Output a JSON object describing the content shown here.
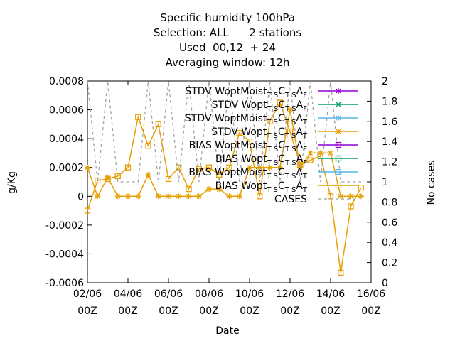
{
  "chart_data": {
    "type": "line",
    "title_lines": [
      "Specific humidity 100hPa",
      "Selection: ALL      2 stations",
      "Used  00,12  + 24",
      "Averaging window: 12h"
    ],
    "xlabel": "Date",
    "ylabel": "g/Kg",
    "y2label": "No cases",
    "x_range_days": [
      2,
      16
    ],
    "x_ticks": [
      {
        "day": 2,
        "line1": "02/06",
        "line2": "00Z"
      },
      {
        "day": 4,
        "line1": "04/06",
        "line2": "00Z"
      },
      {
        "day": 6,
        "line1": "06/06",
        "line2": "00Z"
      },
      {
        "day": 8,
        "line1": "08/06",
        "line2": "00Z"
      },
      {
        "day": 10,
        "line1": "10/06",
        "line2": "00Z"
      },
      {
        "day": 12,
        "line1": "12/06",
        "line2": "00Z"
      },
      {
        "day": 14,
        "line1": "14/06",
        "line2": "00Z"
      },
      {
        "day": 16,
        "line1": "16/06",
        "line2": "00Z"
      }
    ],
    "ylim": [
      -0.0006,
      0.0008
    ],
    "y_ticks": [
      {
        "v": 0.0008,
        "label": "0.0008"
      },
      {
        "v": 0.0006,
        "label": "0.0006"
      },
      {
        "v": 0.0004,
        "label": "0.0004"
      },
      {
        "v": 0.0002,
        "label": "0.0002"
      },
      {
        "v": 0,
        "label": "0"
      },
      {
        "v": -0.0002,
        "label": "-0.0002"
      },
      {
        "v": -0.0004,
        "label": "-0.0004"
      },
      {
        "v": -0.0006,
        "label": "-0.0006"
      }
    ],
    "y2lim": [
      0,
      2
    ],
    "y2_ticks": [
      {
        "v": 2,
        "label": "2"
      },
      {
        "v": 1.8,
        "label": "1.8"
      },
      {
        "v": 1.6,
        "label": "1.6"
      },
      {
        "v": 1.4,
        "label": "1.4"
      },
      {
        "v": 1.2,
        "label": "1.2"
      },
      {
        "v": 1,
        "label": "1"
      },
      {
        "v": 0.8,
        "label": "0.8"
      },
      {
        "v": 0.6,
        "label": "0.6"
      },
      {
        "v": 0.4,
        "label": "0.4"
      },
      {
        "v": 0.2,
        "label": "0.2"
      },
      {
        "v": 0,
        "label": "0"
      }
    ],
    "legend_position": "top-right",
    "legend": [
      {
        "label": "STDV WoptMoist",
        "sub1": "T S",
        "mid": "C",
        "sub2": "T S",
        "end": "A",
        "sub3": "F",
        "color": "#9400d3",
        "marker": "star"
      },
      {
        "label": "STDV Wopt",
        "sub1": "T S",
        "mid": "C",
        "sub2": "T S",
        "end": "A",
        "sub3": "F",
        "color": "#009e73",
        "marker": "x"
      },
      {
        "label": "STDV WoptMoist",
        "sub1": "T S",
        "mid": "C",
        "sub2": "T S",
        "end": "A",
        "sub3": "T",
        "color": "#56b4e9",
        "marker": "star"
      },
      {
        "label": "STDV Wopt",
        "sub1": "T S",
        "mid": "C",
        "sub2": "T S",
        "end": "A",
        "sub3": "T",
        "color": "#e69f00",
        "marker": "star"
      },
      {
        "label": "BIAS WoptMoist",
        "sub1": "T S",
        "mid": "C",
        "sub2": "T S",
        "end": "A",
        "sub3": "F",
        "color": "#9400d3",
        "marker": "square"
      },
      {
        "label": "BIAS Wopt",
        "sub1": "T S",
        "mid": "C",
        "sub2": "T S",
        "end": "A",
        "sub3": "F",
        "color": "#009e73",
        "marker": "square"
      },
      {
        "label": "BIAS WoptMoist",
        "sub1": "T S",
        "mid": "C",
        "sub2": "T S",
        "end": "A",
        "sub3": "T",
        "color": "#56b4e9",
        "marker": "square"
      },
      {
        "label": "BIAS Wopt",
        "sub1": "T S",
        "mid": "C",
        "sub2": "T S",
        "end": "A",
        "sub3": "T",
        "color": "#e69f00",
        "marker": "square"
      },
      {
        "label": "CASES",
        "color": "#a0a0a0",
        "marker": "dashed"
      }
    ],
    "series": [
      {
        "name": "STDV Wopt",
        "color": "#e69f00",
        "marker": "star",
        "axis": "y",
        "x": [
          2.0,
          2.5,
          3.0,
          3.5,
          4.0,
          4.5,
          5.0,
          5.5,
          6.0,
          6.5,
          7.0,
          7.5,
          8.0,
          8.5,
          9.0,
          9.5,
          10.0,
          10.5,
          11.0,
          11.5,
          12.0,
          12.5,
          13.0,
          13.5,
          14.0,
          14.5,
          15.0,
          15.5
        ],
        "y": [
          0.0002,
          0.0,
          0.00013,
          0.0,
          0.0,
          0.0,
          0.00015,
          0.0,
          0.0,
          0.0,
          0.0,
          0.0,
          5e-05,
          5e-05,
          0.0,
          0.0,
          0.0002,
          0.0002,
          0.0002,
          0.0002,
          0.0006,
          0.0002,
          0.0003,
          0.0003,
          0.0003,
          0.0,
          0.0,
          0.0
        ]
      },
      {
        "name": "BIAS Wopt",
        "color": "#e69f00",
        "marker": "square",
        "axis": "y",
        "x": [
          2.0,
          2.5,
          3.0,
          3.5,
          4.0,
          4.5,
          5.0,
          5.5,
          6.0,
          6.5,
          7.0,
          7.5,
          8.0,
          8.5,
          9.0,
          9.5,
          10.0,
          10.5,
          11.0,
          11.5,
          12.0,
          12.5,
          13.0,
          13.5,
          14.0,
          14.5,
          15.0,
          15.5
        ],
        "y": [
          -0.0001,
          0.00011,
          0.00012,
          0.00014,
          0.0002,
          0.00055,
          0.00035,
          0.0005,
          0.00012,
          0.0002,
          5e-05,
          0.00019,
          0.0002,
          0.00015,
          0.0002,
          0.00044,
          0.00038,
          0.0,
          0.00052,
          0.00065,
          0.00045,
          0.00022,
          0.00025,
          0.00028,
          0.0,
          -0.00053,
          -7e-05,
          6e-05
        ]
      },
      {
        "name": "CASES",
        "color": "#a0a0a0",
        "marker": "dashed",
        "axis": "y2",
        "x": [
          2.0,
          2.5,
          3.0,
          3.5,
          4.0,
          4.5,
          5.0,
          5.5,
          6.0,
          6.5,
          7.0,
          7.5,
          8.0,
          8.5,
          9.0,
          9.5,
          10.0,
          10.5,
          11.0,
          11.5,
          12.0,
          12.5,
          13.0,
          13.5,
          14.0,
          14.5,
          15.0,
          15.5
        ],
        "y": [
          2,
          1,
          2,
          1,
          1,
          1,
          2,
          1,
          2,
          1,
          2,
          1,
          2,
          1,
          2,
          1,
          2,
          1,
          2,
          1,
          2,
          1,
          2,
          1,
          2,
          1,
          1,
          1
        ]
      }
    ]
  }
}
